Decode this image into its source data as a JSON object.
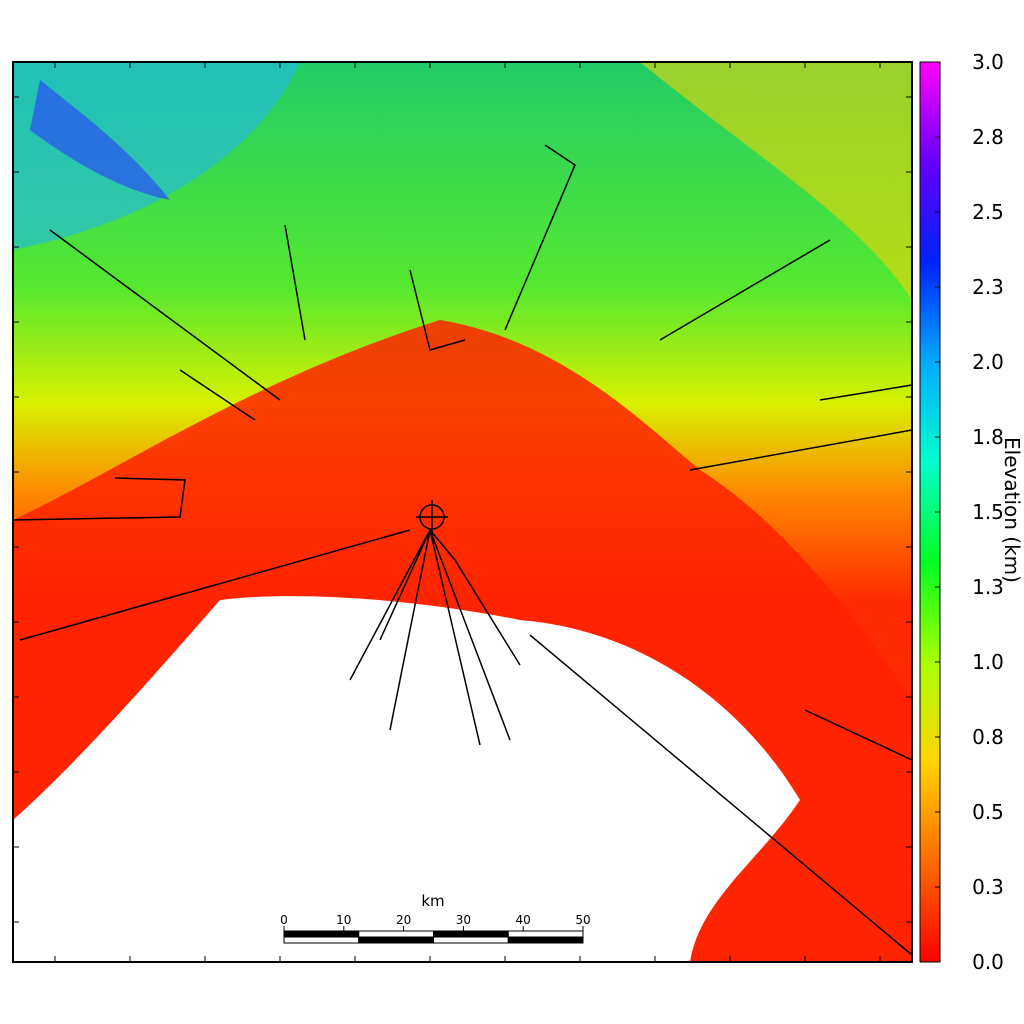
{
  "colorbar": {
    "label": "Elevation (km)",
    "lim": [
      0,
      3
    ],
    "ticks": [
      {
        "value": 0,
        "label": "0.0"
      },
      {
        "value": 0.25,
        "label": "0.3"
      },
      {
        "value": 0.5,
        "label": "0.5"
      },
      {
        "value": 0.75,
        "label": "0.8"
      },
      {
        "value": 1,
        "label": "1.0"
      },
      {
        "value": 1.25,
        "label": "1.3"
      },
      {
        "value": 1.5,
        "label": "1.5"
      },
      {
        "value": 1.75,
        "label": "1.8"
      },
      {
        "value": 2,
        "label": "2.0"
      },
      {
        "value": 2.25,
        "label": "2.3"
      },
      {
        "value": 2.5,
        "label": "2.5"
      },
      {
        "value": 2.75,
        "label": "2.8"
      },
      {
        "value": 3,
        "label": "3.0"
      }
    ],
    "colors": [
      "#ff0000",
      "#ff6a00",
      "#ffd400",
      "#aaff00",
      "#00ff22",
      "#00ffcc",
      "#00aaff",
      "#0022ff",
      "#6600ff",
      "#ff00ff"
    ]
  },
  "scale_bar": {
    "unit": "km",
    "lim": [
      0,
      50
    ],
    "ticks": [
      0,
      10,
      20,
      30,
      40,
      50
    ]
  }
}
